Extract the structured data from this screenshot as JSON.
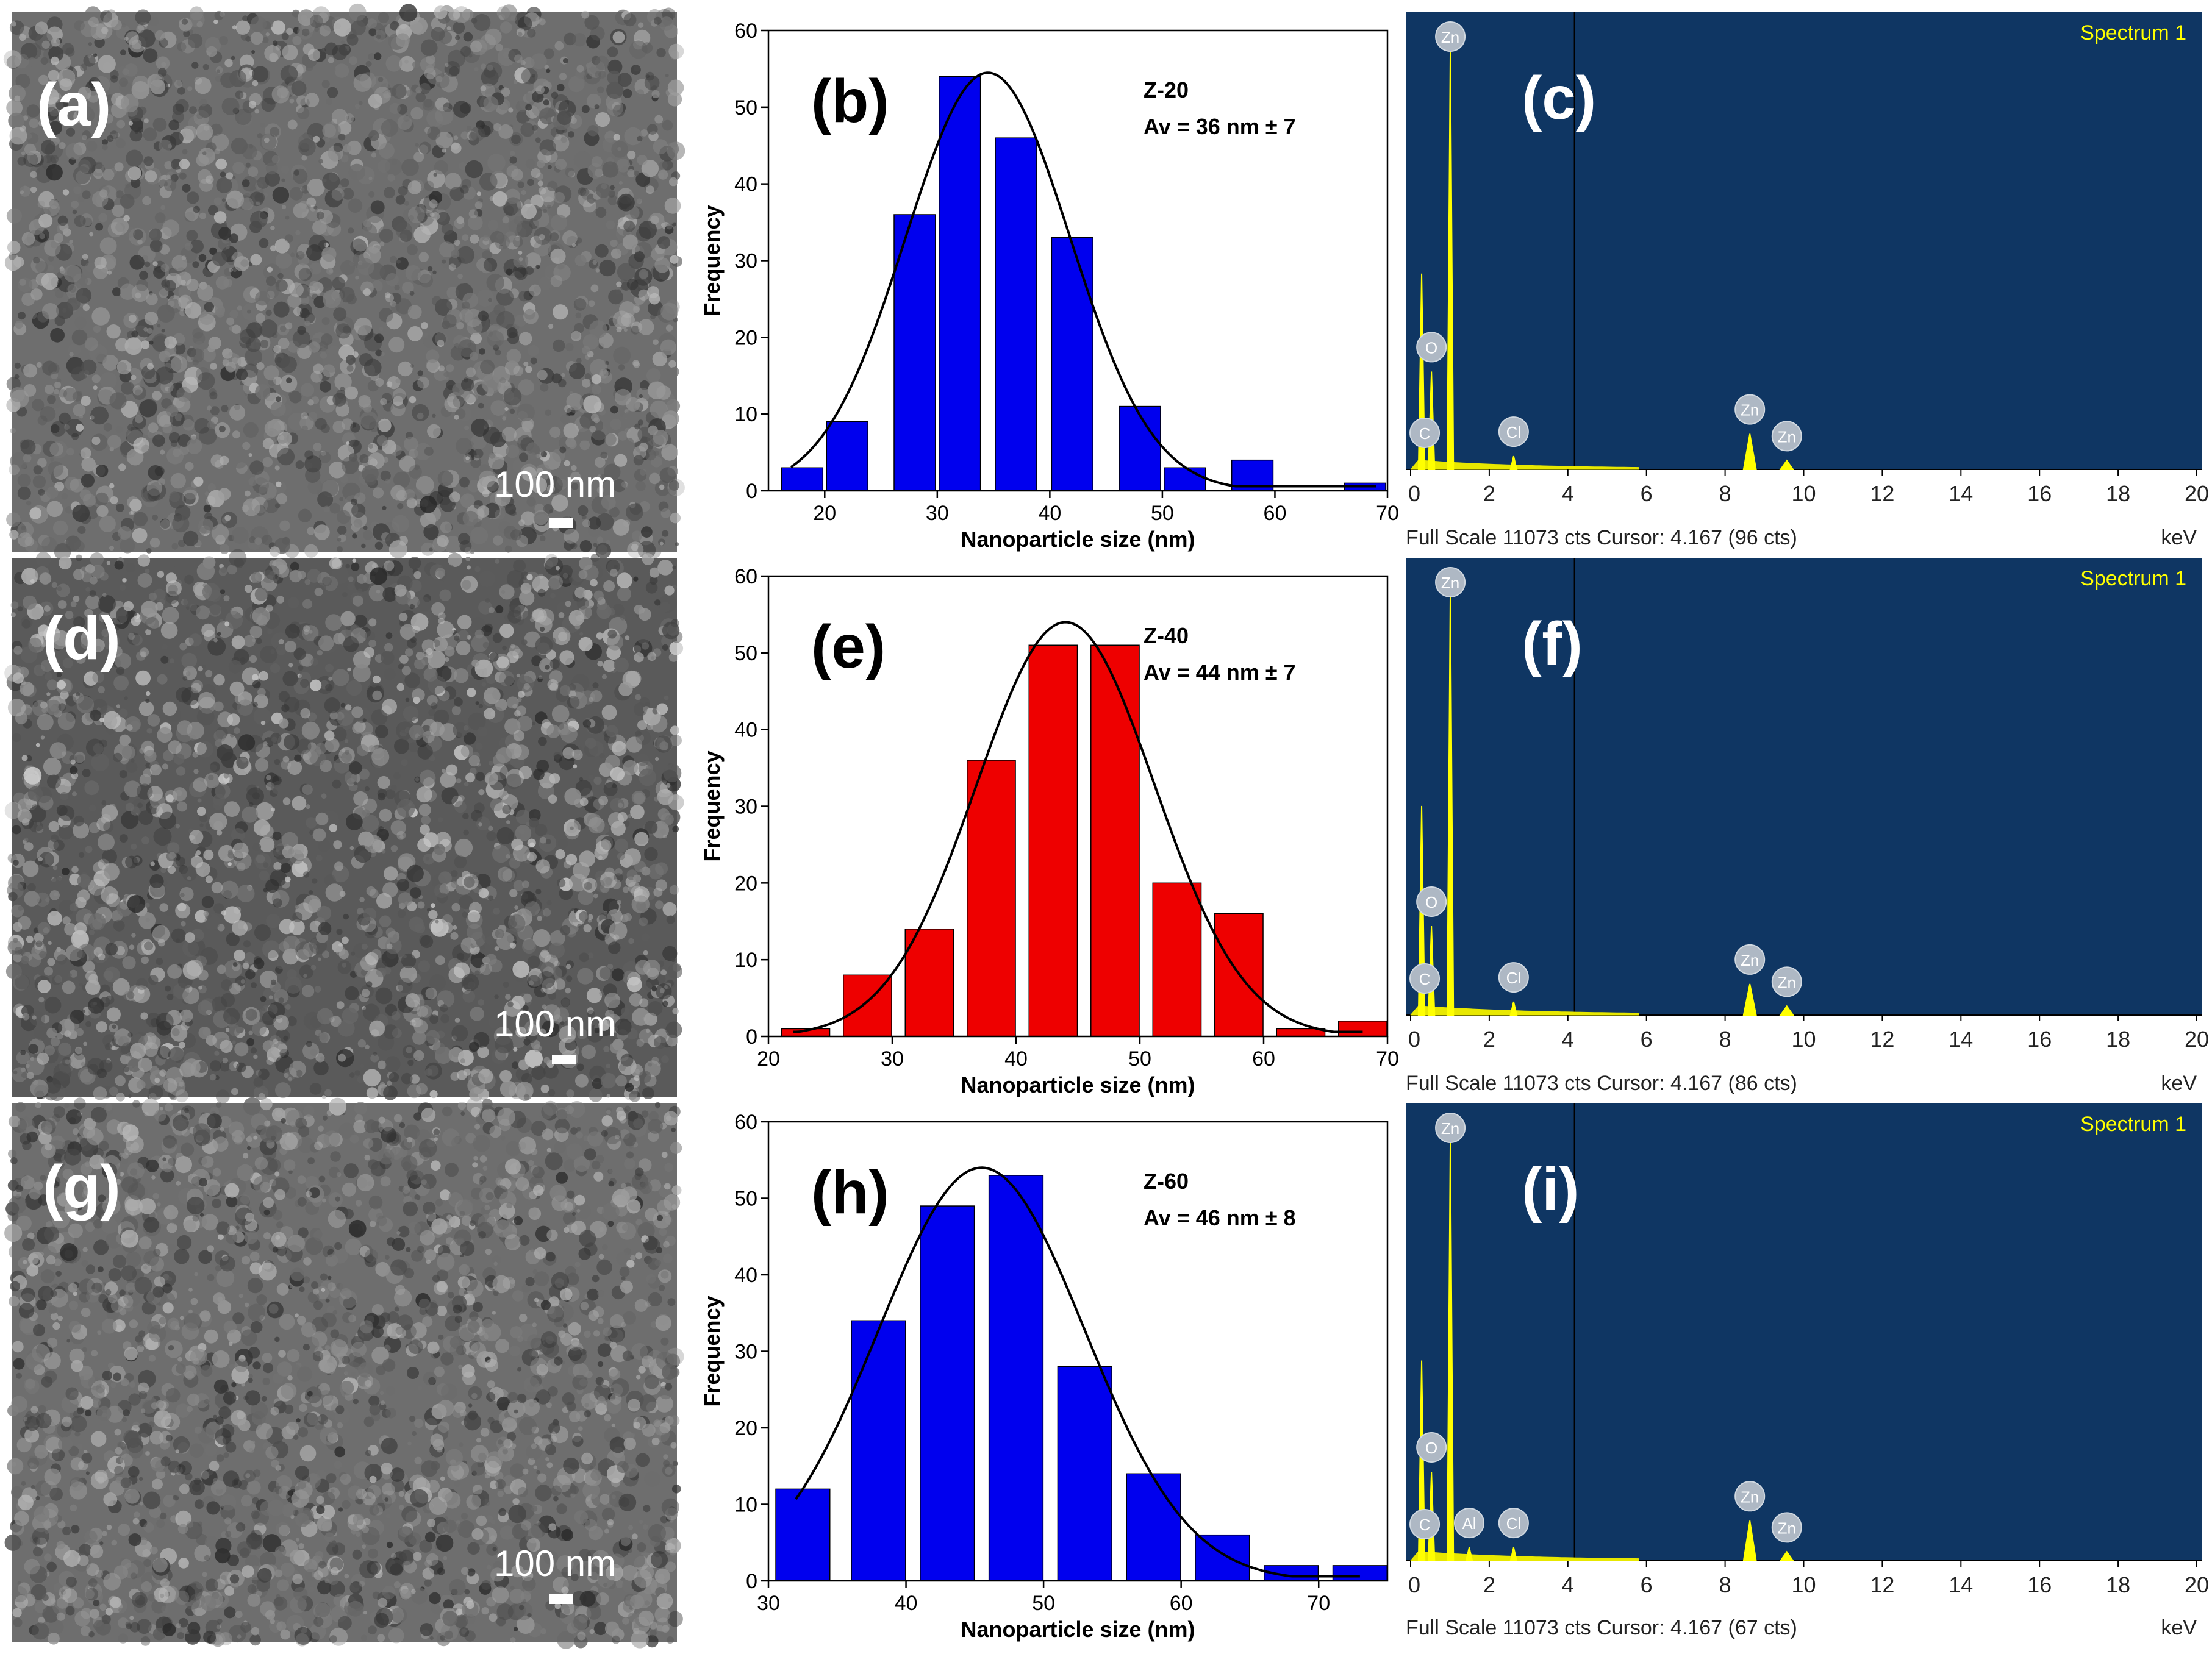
{
  "rows": [
    {
      "sem": {
        "label": "(a)",
        "scale_text": "100 nm",
        "seed": 11
      },
      "hist": {
        "label": "(b)",
        "sample": "Z-20",
        "average": "Av = 36 nm ± 7",
        "color": "#0000ee"
      },
      "eds": {
        "label": "(c)",
        "spectrum": "Spectrum 1",
        "footer_left": "Full Scale 11073 cts Cursor: 4.167  (96 cts)",
        "footer_right": "keV"
      }
    },
    {
      "sem": {
        "label": "(d)",
        "scale_text": "100 nm",
        "seed": 23
      },
      "hist": {
        "label": "(e)",
        "sample": "Z-40",
        "average": "Av = 44 nm ± 7",
        "color": "#ee0000"
      },
      "eds": {
        "label": "(f)",
        "spectrum": "Spectrum 1",
        "footer_left": "Full Scale 11073 cts Cursor: 4.167  (86 cts)",
        "footer_right": "keV"
      }
    },
    {
      "sem": {
        "label": "(g)",
        "scale_text": "100 nm",
        "seed": 37
      },
      "hist": {
        "label": "(h)",
        "sample": "Z-60",
        "average": "Av = 46 nm ± 8",
        "color": "#0000ee"
      },
      "eds": {
        "label": "(i)",
        "spectrum": "Spectrum 1",
        "footer_left": "Full Scale 11073 cts Cursor: 4.167  (67 cts)",
        "footer_right": "keV"
      }
    }
  ],
  "chart_data": [
    {
      "type": "bar",
      "title": "Z-20",
      "annotation": "Av = 36 nm ± 7",
      "xlabel": "Nanoparticle size (nm)",
      "ylabel": "Frequency",
      "xlim": [
        15,
        70
      ],
      "ylim": [
        0,
        60
      ],
      "bin_width": 4,
      "xticks": [
        20,
        30,
        40,
        50,
        60,
        70
      ],
      "yticks": [
        0,
        10,
        20,
        30,
        40,
        50,
        60
      ],
      "x": [
        18,
        22,
        28,
        32,
        37,
        42,
        48,
        52,
        58,
        68
      ],
      "values": [
        3,
        9,
        36,
        54,
        46,
        33,
        11,
        3,
        4,
        1
      ],
      "fit": {
        "type": "gaussian",
        "mean": 34.5,
        "sigma": 7.3,
        "amplitude": 54.5,
        "range": [
          17,
          69
        ]
      }
    },
    {
      "type": "bar",
      "title": "Z-40",
      "annotation": "Av = 44 nm ± 7",
      "xlabel": "Nanoparticle size (nm)",
      "ylabel": "Frequency",
      "xlim": [
        20,
        70
      ],
      "ylim": [
        0,
        60
      ],
      "bin_width": 4.2,
      "xticks": [
        20,
        30,
        40,
        50,
        60,
        70
      ],
      "yticks": [
        0,
        10,
        20,
        30,
        40,
        50,
        60
      ],
      "x": [
        23,
        28,
        33,
        38,
        43,
        48,
        53,
        58,
        63,
        68
      ],
      "values": [
        1,
        8,
        14,
        36,
        51,
        51,
        20,
        16,
        1,
        2
      ],
      "fit": {
        "type": "gaussian",
        "mean": 44,
        "sigma": 7.2,
        "amplitude": 54,
        "range": [
          22,
          68
        ]
      }
    },
    {
      "type": "bar",
      "title": "Z-60",
      "annotation": "Av = 46 nm ± 8",
      "xlabel": "Nanoparticle size (nm)",
      "ylabel": "Frequency",
      "xlim": [
        30,
        75
      ],
      "ylim": [
        0,
        60
      ],
      "bin_width": 4.2,
      "xticks": [
        30,
        40,
        50,
        60,
        70
      ],
      "yticks": [
        0,
        10,
        20,
        30,
        40,
        50,
        60
      ],
      "x": [
        32.5,
        38,
        43,
        48,
        53,
        58,
        63,
        68,
        73
      ],
      "values": [
        12,
        34,
        49,
        53,
        28,
        14,
        6,
        2,
        2
      ],
      "fit": {
        "type": "gaussian",
        "mean": 45.5,
        "sigma": 7.5,
        "amplitude": 54,
        "range": [
          32,
          73
        ]
      }
    },
    {
      "type": "line",
      "title": "Spectrum 1",
      "xlabel": "keV",
      "xlim": [
        0,
        20
      ],
      "xticks": [
        0,
        2,
        4,
        6,
        8,
        10,
        12,
        14,
        16,
        18,
        20
      ],
      "cursor": 4.167,
      "peaks": [
        {
          "element": "C",
          "x": 0.28,
          "rel": 0.44
        },
        {
          "element": "O",
          "x": 0.53,
          "rel": 0.22
        },
        {
          "element": "Zn",
          "x": 1.01,
          "rel": 0.95
        },
        {
          "element": "Cl",
          "x": 2.62,
          "rel": 0.03
        },
        {
          "element": "Zn",
          "x": 8.63,
          "rel": 0.08
        },
        {
          "element": "Zn",
          "x": 9.57,
          "rel": 0.02
        }
      ]
    },
    {
      "type": "line",
      "title": "Spectrum 1",
      "xlabel": "keV",
      "xlim": [
        0,
        20
      ],
      "xticks": [
        0,
        2,
        4,
        6,
        8,
        10,
        12,
        14,
        16,
        18,
        20
      ],
      "cursor": 4.167,
      "peaks": [
        {
          "element": "C",
          "x": 0.28,
          "rel": 0.47
        },
        {
          "element": "O",
          "x": 0.53,
          "rel": 0.2
        },
        {
          "element": "Zn",
          "x": 1.01,
          "rel": 0.96
        },
        {
          "element": "Cl",
          "x": 2.62,
          "rel": 0.03
        },
        {
          "element": "Zn",
          "x": 8.63,
          "rel": 0.07
        },
        {
          "element": "Zn",
          "x": 9.57,
          "rel": 0.02
        }
      ]
    },
    {
      "type": "line",
      "title": "Spectrum 1",
      "xlabel": "keV",
      "xlim": [
        0,
        20
      ],
      "xticks": [
        0,
        2,
        4,
        6,
        8,
        10,
        12,
        14,
        16,
        18,
        20
      ],
      "cursor": 4.167,
      "peaks": [
        {
          "element": "C",
          "x": 0.28,
          "rel": 0.45
        },
        {
          "element": "O",
          "x": 0.53,
          "rel": 0.2
        },
        {
          "element": "Zn",
          "x": 1.01,
          "rel": 0.95
        },
        {
          "element": "Al",
          "x": 1.49,
          "rel": 0.03
        },
        {
          "element": "Cl",
          "x": 2.62,
          "rel": 0.03
        },
        {
          "element": "Zn",
          "x": 8.63,
          "rel": 0.09
        },
        {
          "element": "Zn",
          "x": 9.57,
          "rel": 0.02
        }
      ]
    }
  ]
}
